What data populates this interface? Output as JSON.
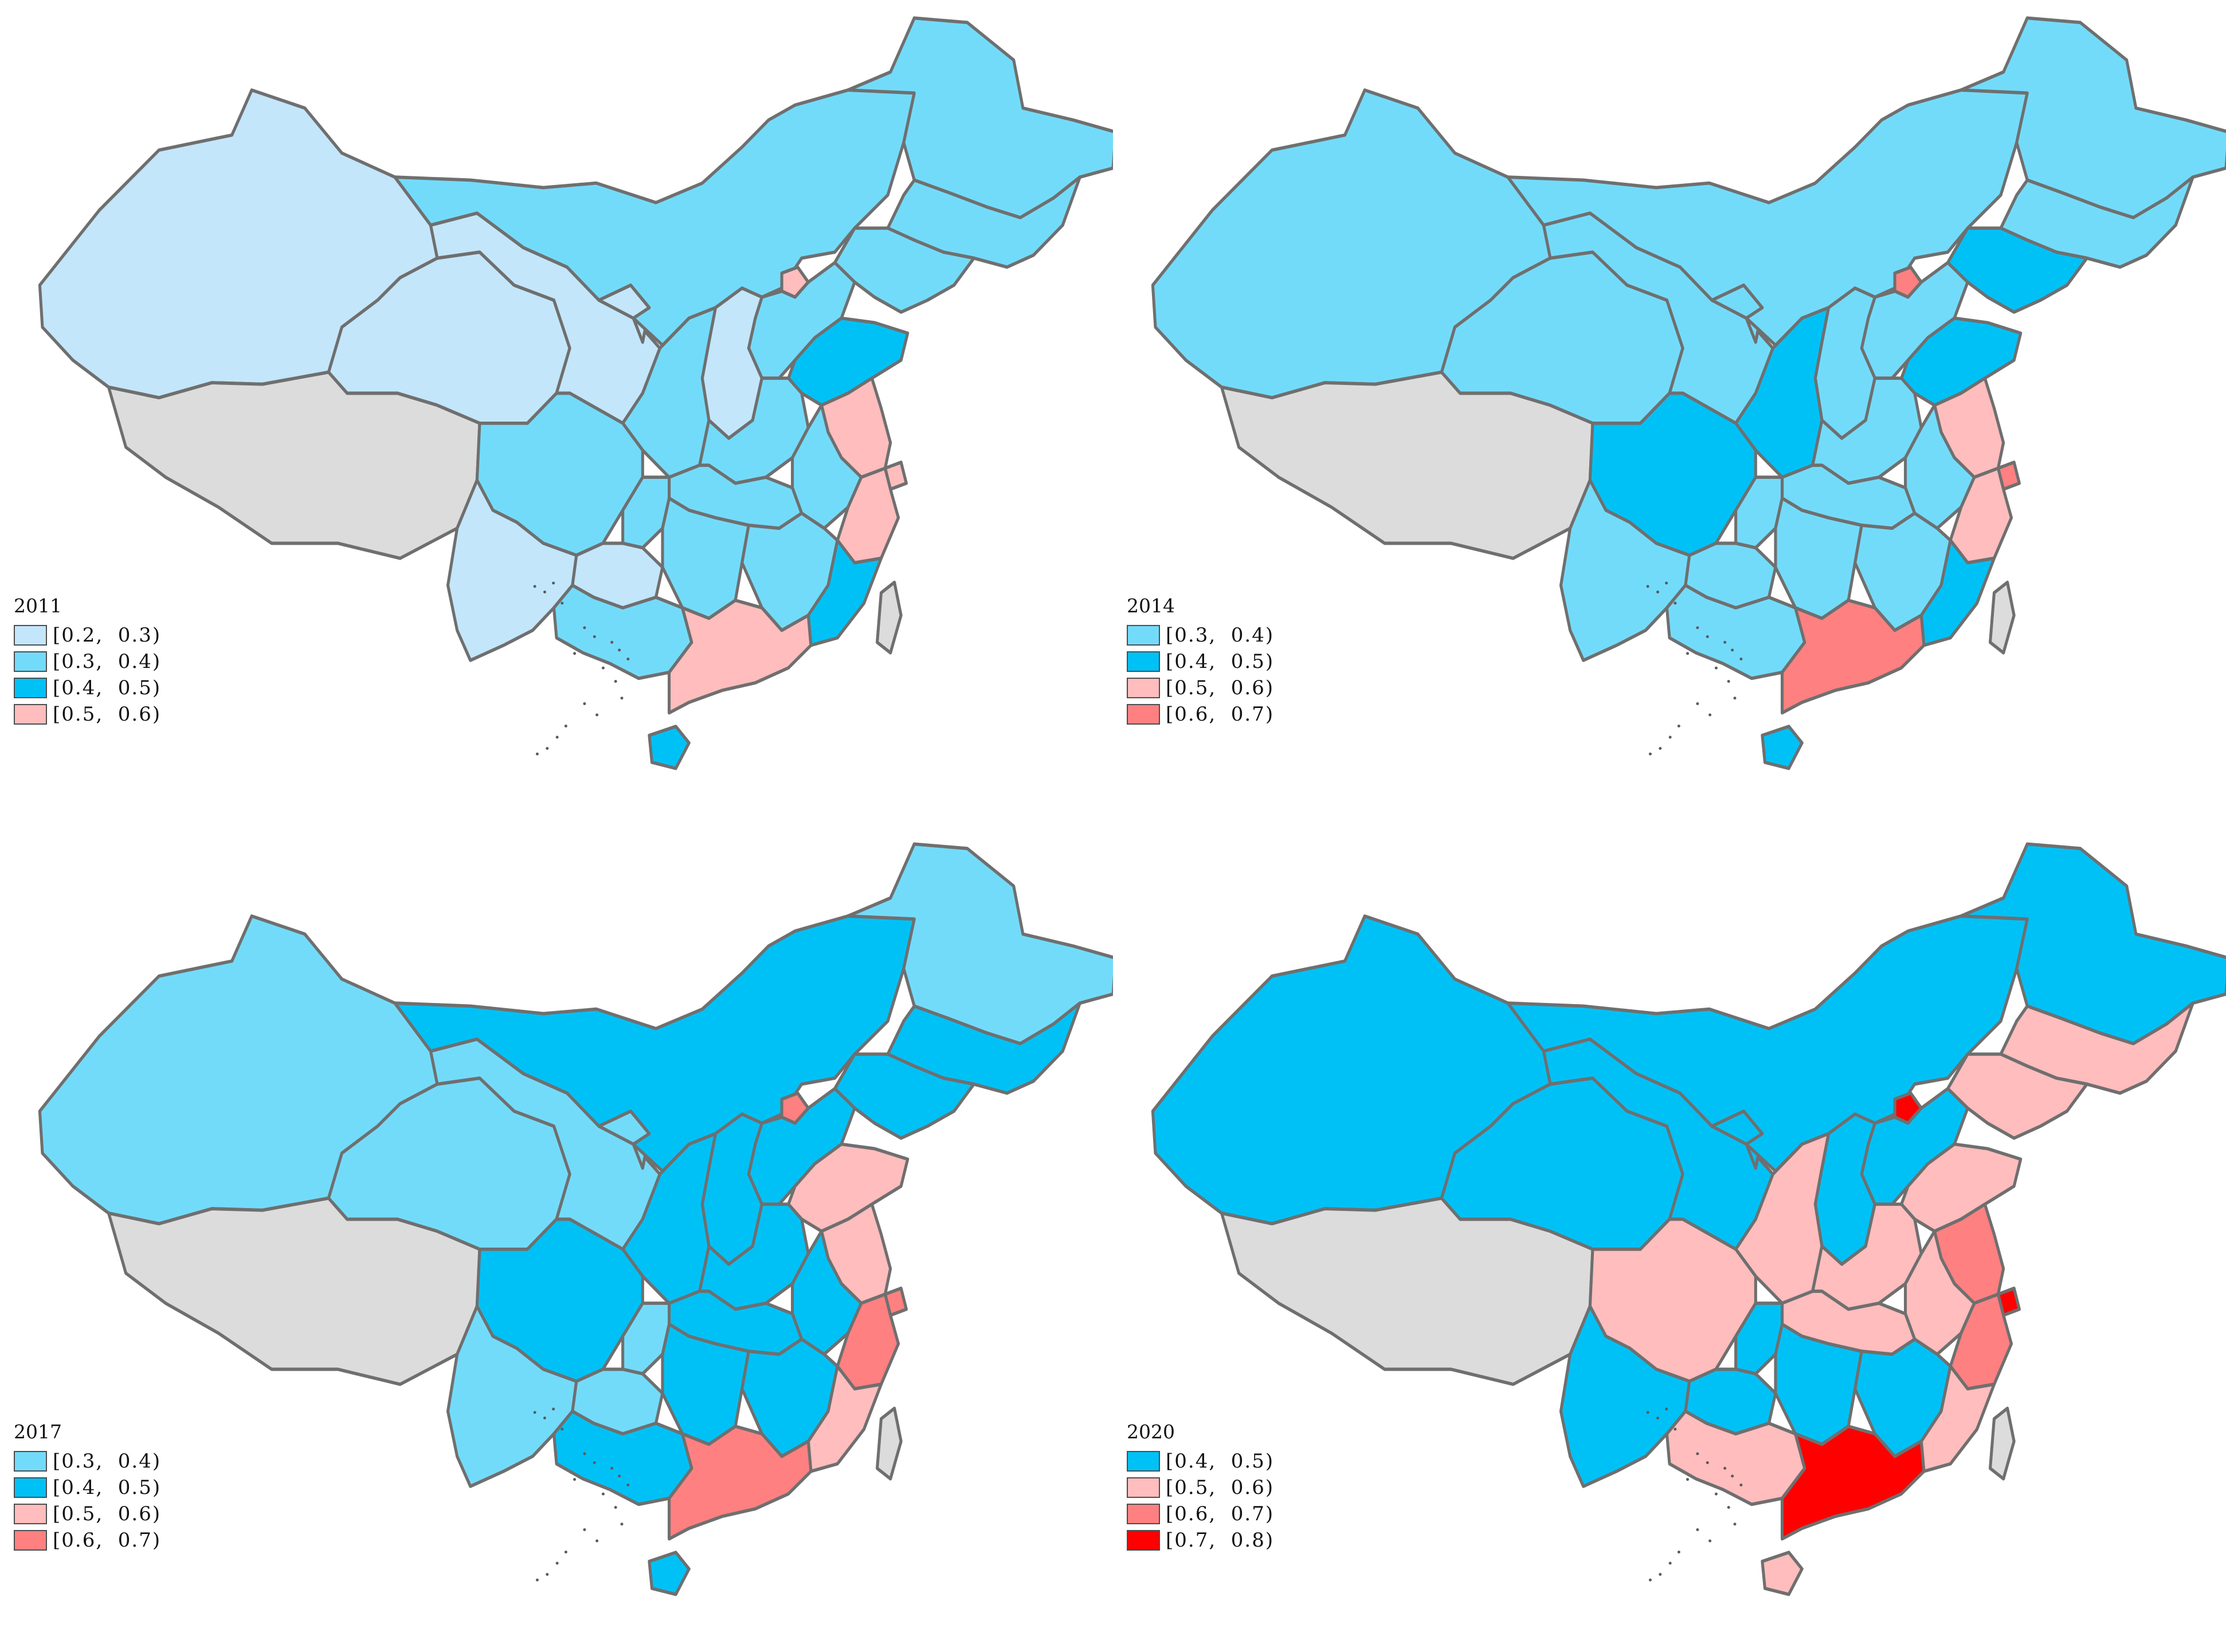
{
  "colors": {
    "c0203": "#c3e6fb",
    "c0304": "#73dbfa",
    "c0405": "#00c1f6",
    "c0506": "#ffbdbd",
    "c0607": "#ff8080",
    "c0708": "#ff0000",
    "nodata": "#dcdcdc"
  },
  "panels": [
    {
      "year": "2011",
      "legend": [
        {
          "label": "[0.2,  0.3)",
          "color": "#c3e6fb"
        },
        {
          "label": "[0.3,  0.4)",
          "color": "#73dbfa"
        },
        {
          "label": "[0.4,  0.5)",
          "color": "#00c1f6"
        },
        {
          "label": "[0.5,  0.6)",
          "color": "#ffbdbd"
        }
      ],
      "regions": {
        "xinjiang": "c0203",
        "tibet": "nodata",
        "qinghai": "c0203",
        "gansu": "c0203",
        "ningxia": "c0203",
        "inner-mongolia": "c0304",
        "heilongjiang": "c0304",
        "jilin": "c0304",
        "liaoning": "c0304",
        "beijing": "c0506",
        "hebei": "c0304",
        "shanxi": "c0203",
        "shaanxi": "c0304",
        "shandong": "c0405",
        "henan": "c0304",
        "jiangsu": "c0506",
        "shanghai": "c0506",
        "anhui": "c0304",
        "zhejiang": "c0506",
        "hubei": "c0304",
        "sichuan": "c0304",
        "chongqing": "c0304",
        "guizhou": "c0203",
        "yunnan": "c0203",
        "hunan": "c0304",
        "jiangxi": "c0304",
        "fujian": "c0405",
        "guangxi": "c0304",
        "guangdong": "c0506",
        "hainan": "c0405",
        "taiwan": "nodata"
      }
    },
    {
      "year": "2014",
      "legend": [
        {
          "label": "[0.3,  0.4)",
          "color": "#73dbfa"
        },
        {
          "label": "[0.4,  0.5)",
          "color": "#00c1f6"
        },
        {
          "label": "[0.5,  0.6)",
          "color": "#ffbdbd"
        },
        {
          "label": "[0.6,  0.7)",
          "color": "#ff8080"
        }
      ],
      "regions": {
        "xinjiang": "c0304",
        "tibet": "nodata",
        "qinghai": "c0304",
        "gansu": "c0304",
        "ningxia": "c0304",
        "inner-mongolia": "c0304",
        "heilongjiang": "c0304",
        "jilin": "c0304",
        "liaoning": "c0405",
        "beijing": "c0607",
        "hebei": "c0304",
        "shanxi": "c0304",
        "shaanxi": "c0405",
        "shandong": "c0405",
        "henan": "c0304",
        "jiangsu": "c0506",
        "shanghai": "c0607",
        "anhui": "c0304",
        "zhejiang": "c0506",
        "hubei": "c0304",
        "sichuan": "c0405",
        "chongqing": "c0304",
        "guizhou": "c0304",
        "yunnan": "c0304",
        "hunan": "c0304",
        "jiangxi": "c0304",
        "fujian": "c0405",
        "guangxi": "c0304",
        "guangdong": "c0607",
        "hainan": "c0405",
        "taiwan": "nodata"
      }
    },
    {
      "year": "2017",
      "legend": [
        {
          "label": "[0.3,  0.4)",
          "color": "#73dbfa"
        },
        {
          "label": "[0.4,  0.5)",
          "color": "#00c1f6"
        },
        {
          "label": "[0.5,  0.6)",
          "color": "#ffbdbd"
        },
        {
          "label": "[0.6,  0.7)",
          "color": "#ff8080"
        }
      ],
      "regions": {
        "xinjiang": "c0304",
        "tibet": "nodata",
        "qinghai": "c0304",
        "gansu": "c0304",
        "ningxia": "c0304",
        "inner-mongolia": "c0405",
        "heilongjiang": "c0304",
        "jilin": "c0405",
        "liaoning": "c0405",
        "beijing": "c0607",
        "hebei": "c0405",
        "shanxi": "c0405",
        "shaanxi": "c0405",
        "shandong": "c0506",
        "henan": "c0405",
        "jiangsu": "c0506",
        "shanghai": "c0607",
        "anhui": "c0405",
        "zhejiang": "c0607",
        "hubei": "c0405",
        "sichuan": "c0405",
        "chongqing": "c0304",
        "guizhou": "c0304",
        "yunnan": "c0304",
        "hunan": "c0405",
        "jiangxi": "c0405",
        "fujian": "c0506",
        "guangxi": "c0405",
        "guangdong": "c0607",
        "hainan": "c0405",
        "taiwan": "nodata"
      }
    },
    {
      "year": "2020",
      "legend": [
        {
          "label": "[0.4,  0.5)",
          "color": "#00c1f6"
        },
        {
          "label": "[0.5,  0.6)",
          "color": "#ffbdbd"
        },
        {
          "label": "[0.6,  0.7)",
          "color": "#ff8080"
        },
        {
          "label": "[0.7,  0.8)",
          "color": "#ff0000"
        }
      ],
      "regions": {
        "xinjiang": "c0405",
        "tibet": "nodata",
        "qinghai": "c0405",
        "gansu": "c0405",
        "ningxia": "c0405",
        "inner-mongolia": "c0405",
        "heilongjiang": "c0405",
        "jilin": "c0506",
        "liaoning": "c0506",
        "beijing": "c0708",
        "hebei": "c0405",
        "shanxi": "c0405",
        "shaanxi": "c0506",
        "shandong": "c0506",
        "henan": "c0506",
        "jiangsu": "c0607",
        "shanghai": "c0708",
        "anhui": "c0506",
        "zhejiang": "c0607",
        "hubei": "c0506",
        "sichuan": "c0506",
        "chongqing": "c0405",
        "guizhou": "c0405",
        "yunnan": "c0405",
        "hunan": "c0405",
        "jiangxi": "c0405",
        "fujian": "c0506",
        "guangxi": "c0506",
        "guangdong": "c0708",
        "hainan": "c0506",
        "taiwan": "nodata"
      }
    }
  ]
}
